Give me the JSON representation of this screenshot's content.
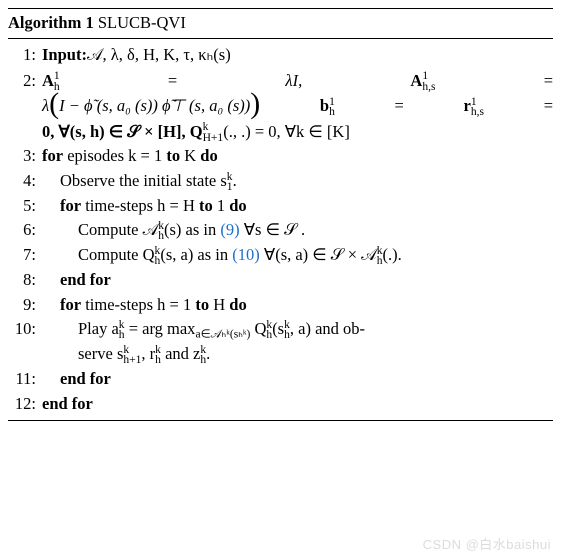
{
  "algo": {
    "label": "Algorithm 1",
    "name": "SLUCB-QVI",
    "lines": {
      "l1": {
        "no": "1:",
        "kw": "Input:",
        "rest": "𝒜, λ, δ, H, K, τ, κₕ(s)"
      },
      "l2": {
        "no": "2:",
        "a1": "A",
        "a1sub": "h",
        "a1sup": "1",
        "eq1": "=",
        "rhs1": "λI,",
        "a2": "A",
        "a2sub": "h,s",
        "a2sup": "1",
        "eq2": "=",
        "line2a_pre": "λ",
        "line2a_inner": "I − ϕ̃ (s, a₀ (s)) ϕ̃⊤ (s, a₀ (s))",
        "b": "b",
        "bsub": "h",
        "bsup": "1",
        "eq3": "=",
        "r": "r",
        "rsub": "h,s",
        "rsup": "1",
        "eq4": "=",
        "line2c": "0,  ∀(s, h) ∈ 𝒮 × [H], Q",
        "Qsub": "H+1",
        "Qsup": "k",
        "line2c2": "(., .) = 0,  ∀k ∈ [K]"
      },
      "l3": {
        "no": "3:",
        "kw1": "for",
        "mid": " episodes k = 1 ",
        "kw2": "to",
        "end": " K ",
        "kw3": "do"
      },
      "l4": {
        "no": "4:",
        "txt": "Observe the initial state s",
        "sub": "1",
        "sup": "k",
        "dot": "."
      },
      "l5": {
        "no": "5:",
        "kw1": "for",
        "mid": " time-steps h = H ",
        "kw2": "to",
        "end": " 1 ",
        "kw3": "do"
      },
      "l6": {
        "no": "6:",
        "t1": "Compute 𝒜",
        "sub": "h",
        "sup": "k",
        "t2": "(s) as in ",
        "ref": "(9)",
        "t3": " ∀s ∈ 𝒮 ."
      },
      "l7": {
        "no": "7:",
        "t1": "Compute Q",
        "sub": "h",
        "sup": "k",
        "t2": "(s, a) as in ",
        "ref": "(10)",
        "t3": " ∀(s, a) ∈ 𝒮 × 𝒜",
        "sub2": "h",
        "sup2": "k",
        "t4": "(.)."
      },
      "l8": {
        "no": "8:",
        "kw": "end for"
      },
      "l9": {
        "no": "9:",
        "kw1": "for",
        "mid": "  time-steps h = 1 ",
        "kw2": "to",
        "end": " H ",
        "kw3": "do"
      },
      "l10": {
        "no": "10:",
        "t1": "Play a",
        "sub1": "h",
        "sup1": "k",
        "t2": " = arg max",
        "argsub": "a∈𝒜ₕᵏ(sₕᵏ)",
        "t3": " Q",
        "sub3": "h",
        "sup3": "k",
        "t4": "(s",
        "sub4": "h",
        "sup4": "k",
        "t5": ", a) and ob-",
        "line2_pre": "serve s",
        "s_sub": "h+1",
        "s_sup": "k",
        "comma1": ", r",
        "r_sub": "h",
        "r_sup": "k",
        "and": " and z",
        "z_sub": "h",
        "z_sup": "k",
        "dot": "."
      },
      "l11": {
        "no": "11:",
        "kw": "end for"
      },
      "l12": {
        "no": "12:",
        "kw": "end for"
      }
    }
  },
  "watermark": "CSDN @白水baishui"
}
